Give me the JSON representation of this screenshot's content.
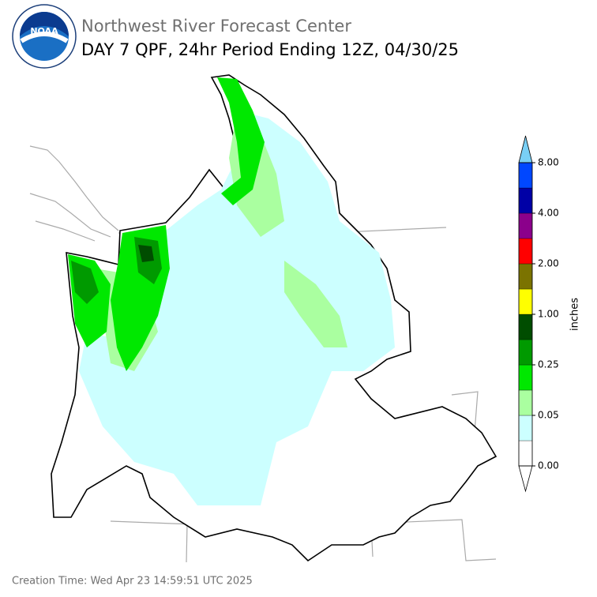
{
  "header": {
    "logo_text": "NOAA",
    "title": "Northwest River Forecast Center",
    "subtitle": "DAY 7 QPF, 24hr Period Ending 12Z, 04/30/25"
  },
  "colorbar": {
    "unit": "inches",
    "ticks": [
      "0.00",
      "0.05",
      "0.25",
      "1.00",
      "2.00",
      "4.00",
      "8.00"
    ],
    "colors": [
      "#ffffff",
      "#ccffff",
      "#aaffa0",
      "#00e800",
      "#009a00",
      "#004d00",
      "#ffff00",
      "#7b7300",
      "#ff0000",
      "#8b008b",
      "#0000a6",
      "#0047ff"
    ],
    "over_color": "#79cff5",
    "under_color": "#ffffff"
  },
  "footer": {
    "creation_time": "Creation Time: Wed Apr 23 14:59:51 UTC 2025"
  }
}
